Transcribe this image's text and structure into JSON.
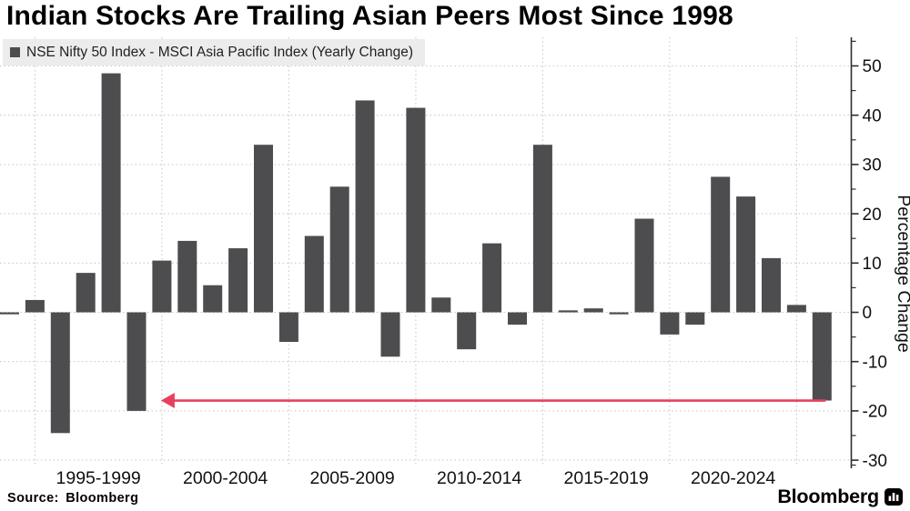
{
  "title": {
    "text": "Indian Stocks Are Trailing Asian Peers Most Since 1998"
  },
  "legend": {
    "label": "NSE Nifty 50 Index - MSCI Asia Pacific Index (Yearly Change)"
  },
  "footer": {
    "source": "Source: Bloomberg",
    "brand": "Bloomberg"
  },
  "colors": {
    "bar": "#4d4d4f",
    "legend_bg": "#ececec",
    "grid": "#c9c9c9",
    "axis": "#2e2e2e",
    "text": "#111111",
    "arrow": "#e8405c"
  },
  "chart_data": {
    "type": "bar",
    "series_name": "NSE Nifty 50 Index - MSCI Asia Pacific Index (Yearly Change)",
    "x": [
      1993,
      1994,
      1995,
      1996,
      1997,
      1998,
      1999,
      2000,
      2001,
      2002,
      2003,
      2004,
      2005,
      2006,
      2007,
      2008,
      2009,
      2010,
      2011,
      2012,
      2013,
      2014,
      2015,
      2016,
      2017,
      2018,
      2019,
      2020,
      2021,
      2022,
      2023,
      2024,
      2025
    ],
    "values": [
      -0.4,
      2.5,
      -24.5,
      8,
      48.5,
      -20,
      10.5,
      14.5,
      5.5,
      13,
      34,
      -6,
      15.5,
      25.5,
      43,
      -9,
      41.5,
      3,
      -7.5,
      14,
      -2.5,
      34,
      0.4,
      0.8,
      -0.4,
      19,
      -4.5,
      -2.5,
      27.5,
      23.5,
      11,
      1.5,
      -17.9
    ],
    "title": "Indian Stocks Are Trailing Asian Peers Most Since 1998",
    "xlabel": "",
    "ylabel": "Percentage Change",
    "ylim": [
      -32,
      56
    ],
    "yticks": [
      50,
      40,
      30,
      20,
      10,
      0,
      -10,
      -20,
      -30
    ],
    "yticks_minor": [
      55,
      45,
      35,
      25,
      15,
      5,
      -5,
      -15,
      -25,
      -31
    ],
    "x_group_labels": [
      "1995-1999",
      "2000-2004",
      "2005-2009",
      "2010-2014",
      "2015-2019",
      "2020-2024"
    ],
    "x_tick_years": [
      1994,
      1999,
      2004,
      2009,
      2014,
      2019,
      2024
    ],
    "grid": true,
    "legend_position": "top-left",
    "annotation": {
      "type": "arrow-left",
      "y": -17.9,
      "from_year": 2025,
      "to_year": 1999
    }
  }
}
